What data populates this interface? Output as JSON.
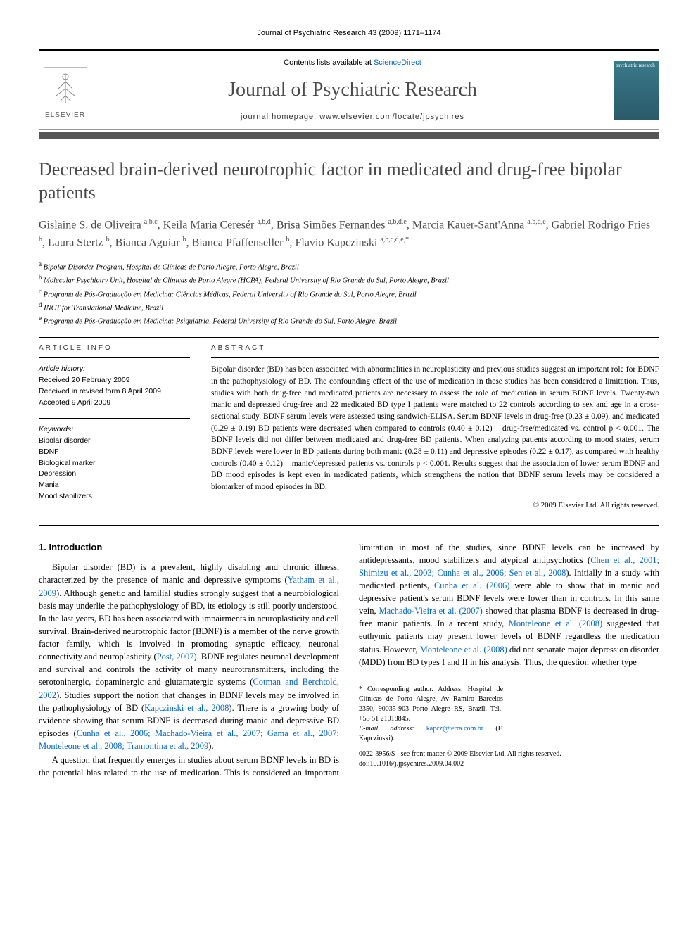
{
  "running_header": "Journal of Psychiatric Research 43 (2009) 1171–1174",
  "header": {
    "contents_prefix": "Contents lists available at ",
    "contents_link": "ScienceDirect",
    "journal_name": "Journal of Psychiatric Research",
    "homepage_prefix": "journal homepage: ",
    "homepage_url": "www.elsevier.com/locate/jpsychires",
    "elsevier_label": "ELSEVIER",
    "cover_text": "psychiatric research"
  },
  "title": "Decreased brain-derived neurotrophic factor in medicated and drug-free bipolar patients",
  "authors_html": "Gislaine S. de Oliveira <sup>a,b,c</sup>, Keila Maria Ceresér <sup>a,b,d</sup>, Brisa Simões Fernandes <sup>a,b,d,e</sup>, Marcia Kauer-Sant'Anna <sup>a,b,d,e</sup>, Gabriel Rodrigo Fries <sup>b</sup>, Laura Stertz <sup>b</sup>, Bianca Aguiar <sup>b</sup>, Bianca Pfaffenseller <sup>b</sup>, Flavio Kapczinski <sup>a,b,c,d,e,*</sup>",
  "affiliations": [
    {
      "sup": "a",
      "text": "Bipolar Disorder Program, Hospital de Clínicas de Porto Alegre, Porto Alegre, Brazil"
    },
    {
      "sup": "b",
      "text": "Molecular Psychiatry Unit, Hospital de Clínicas de Porto Alegre (HCPA), Federal University of Rio Grande do Sul, Porto Alegre, Brazil"
    },
    {
      "sup": "c",
      "text": "Programa de Pós-Graduação em Medicina: Ciências Médicas, Federal University of Rio Grande do Sul, Porto Alegre, Brazil"
    },
    {
      "sup": "d",
      "text": "INCT for Translational Medicine, Brazil"
    },
    {
      "sup": "e",
      "text": "Programa de Pós-Graduação em Medicina: Psiquiatria, Federal University of Rio Grande do Sul, Porto Alegre, Brazil"
    }
  ],
  "article_info": {
    "head": "ARTICLE INFO",
    "history_head": "Article history:",
    "history": [
      "Received 20 February 2009",
      "Received in revised form 8 April 2009",
      "Accepted 9 April 2009"
    ],
    "keywords_head": "Keywords:",
    "keywords": [
      "Bipolar disorder",
      "BDNF",
      "Biological marker",
      "Depression",
      "Mania",
      "Mood stabilizers"
    ]
  },
  "abstract": {
    "head": "ABSTRACT",
    "text": "Bipolar disorder (BD) has been associated with abnormalities in neuroplasticity and previous studies suggest an important role for BDNF in the pathophysiology of BD. The confounding effect of the use of medication in these studies has been considered a limitation. Thus, studies with both drug-free and medicated patients are necessary to assess the role of medication in serum BDNF levels. Twenty-two manic and depressed drug-free and 22 medicated BD type I patients were matched to 22 controls according to sex and age in a cross-sectional study. BDNF serum levels were assessed using sandwich-ELISA. Serum BDNF levels in drug-free (0.23 ± 0.09), and medicated (0.29 ± 0.19) BD patients were decreased when compared to controls (0.40 ± 0.12) – drug-free/medicated vs. control p < 0.001. The BDNF levels did not differ between medicated and drug-free BD patients. When analyzing patients according to mood states, serum BDNF levels were lower in BD patients during both manic (0.28 ± 0.11) and depressive episodes (0.22 ± 0.17), as compared with healthy controls (0.40 ± 0.12) – manic/depressed patients vs. controls p < 0.001. Results suggest that the association of lower serum BDNF and BD mood episodes is kept even in medicated patients, which strengthens the notion that BDNF serum levels may be considered a biomarker of mood episodes in BD.",
    "copyright": "© 2009 Elsevier Ltd. All rights reserved."
  },
  "body": {
    "section1_head": "1. Introduction",
    "p1_pre": "Bipolar disorder (BD) is a prevalent, highly disabling and chronic illness, characterized by the presence of manic and depressive symptoms (",
    "p1_link1": "Yatham et al., 2009",
    "p1_mid1": "). Although genetic and familial studies strongly suggest that a neurobiological basis may underlie the pathophysiology of BD, its etiology is still poorly understood. In the last years, BD has been associated with impairments in neuroplasticity and cell survival. Brain-derived neurotrophic factor (BDNF) is a member of the nerve growth factor family, which is involved in promoting synaptic efficacy, neuronal connectivity and neuroplasticity (",
    "p1_link2": "Post, 2007",
    "p1_mid2": "). BDNF regulates neuronal development and survival and controls the activity of many neurotransmitters, including the serotoninergic, dopaminergic and glutamatergic systems (",
    "p1_link3": "Cotman and Berchtold, 2002",
    "p1_mid3": "). Studies support the notion that changes in BDNF levels may be involved in the pathophysiology of BD (",
    "p1_link4": "Kapczinski et al., 2008",
    "p1_mid4": "). There is a growing body of evidence showing that serum BDNF is decreased during manic and depressive BD episodes (",
    "p1_link5": "Cunha et al., 2006; Machado-Vieira et al., 2007; Gama et al., 2007; Monteleone et al., 2008; Tramontina et al., 2009",
    "p1_end": ").",
    "p2_pre": "A question that frequently emerges in studies about serum BDNF levels in BD is the potential bias related to the use of medication. This is considered an important limitation in most of the studies, since BDNF levels can be increased by antidepressants, mood stabilizers and atypical antipsychotics (",
    "p2_link1": "Chen et al., 2001; Shimizu et al., 2003; Cunha et al., 2006; Sen et al., 2008",
    "p2_mid1": "). Initially in a study with medicated patients, ",
    "p2_link2": "Cunha et al. (2006)",
    "p2_mid2": " were able to show that in manic and depressive patient's serum BDNF levels were lower than in controls. In this same vein, ",
    "p2_link3": "Machado-Vieira et al. (2007)",
    "p2_mid3": " showed that plasma BDNF is decreased in drug-free manic patients. In a recent study, ",
    "p2_link4": "Monteleone et al. (2008)",
    "p2_mid4": " suggested that euthymic patients may present lower levels of BDNF regardless the medication status. However, ",
    "p2_link5": "Monteleone et al. (2008)",
    "p2_end": " did not separate major depression disorder (MDD) from BD types I and II in his analysis. Thus, the question whether type"
  },
  "footnote": {
    "corr": "* Corresponding author. Address: Hospital de Clínicas de Porto Alegre, Av Ramiro Barcelos 2350, 90035-903 Porto Alegre RS, Brazil. Tel.: +55 51 21018845.",
    "email_label": "E-mail address: ",
    "email": "kapcz@terra.com.br",
    "email_suffix": " (F. Kapczinski)."
  },
  "footer": {
    "line1": "0022-3956/$ - see front matter © 2009 Elsevier Ltd. All rights reserved.",
    "line2": "doi:10.1016/j.jpsychires.2009.04.002"
  },
  "colors": {
    "link": "#0066cc",
    "text": "#000000",
    "heading": "#4a4a4a",
    "bar": "#555555"
  }
}
